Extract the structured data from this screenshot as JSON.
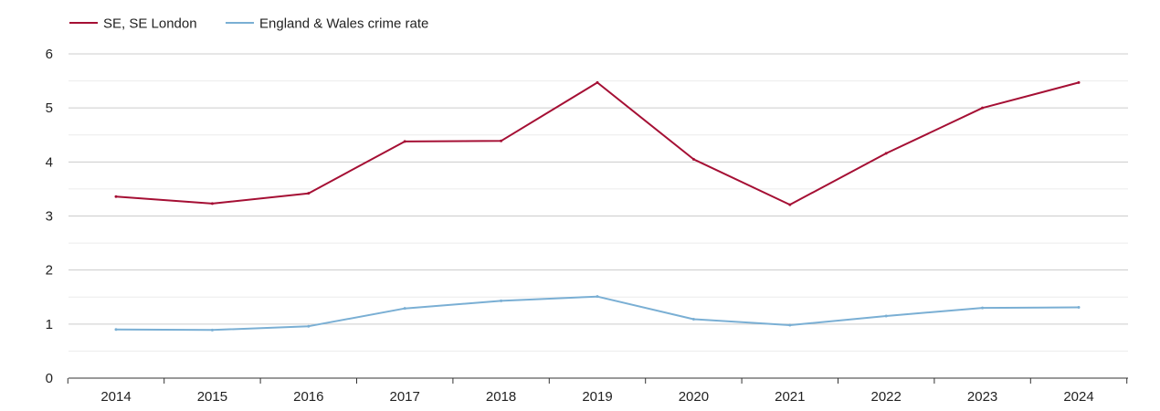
{
  "chart_data": {
    "type": "line",
    "categories": [
      "2014",
      "2015",
      "2016",
      "2017",
      "2018",
      "2019",
      "2020",
      "2021",
      "2022",
      "2023",
      "2024"
    ],
    "series": [
      {
        "name": "SE, SE London",
        "color": "#a50f34",
        "values": [
          3.36,
          3.23,
          3.42,
          4.38,
          4.39,
          5.47,
          4.05,
          3.21,
          4.16,
          5.0,
          5.47
        ]
      },
      {
        "name": "England & Wales crime rate",
        "color": "#7aafd4",
        "values": [
          0.9,
          0.89,
          0.96,
          1.29,
          1.43,
          1.51,
          1.09,
          0.98,
          1.15,
          1.3,
          1.31
        ]
      }
    ],
    "yticks": [
      "0",
      "1",
      "2",
      "3",
      "4",
      "5",
      "6"
    ],
    "ylim": [
      0,
      6
    ],
    "grid": true,
    "legend": "top-left"
  }
}
